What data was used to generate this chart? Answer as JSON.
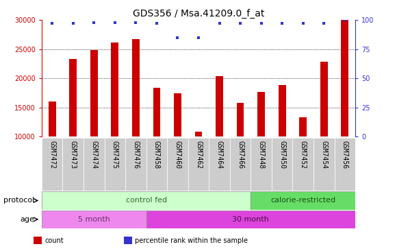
{
  "title": "GDS356 / Msa.41209.0_f_at",
  "samples": [
    "GSM7472",
    "GSM7473",
    "GSM7474",
    "GSM7475",
    "GSM7476",
    "GSM7458",
    "GSM7460",
    "GSM7462",
    "GSM7464",
    "GSM7466",
    "GSM7448",
    "GSM7450",
    "GSM7452",
    "GSM7454",
    "GSM7456"
  ],
  "counts": [
    16000,
    23300,
    24900,
    26200,
    26700,
    18400,
    17500,
    10900,
    20400,
    15800,
    17700,
    18900,
    13400,
    22900,
    30000
  ],
  "percentiles": [
    97,
    97,
    98,
    98,
    98,
    97,
    85,
    85,
    97,
    97,
    97,
    97,
    97,
    97,
    100
  ],
  "bar_color": "#cc0000",
  "dot_color": "#3333cc",
  "ymin": 10000,
  "ymax": 30000,
  "yticks": [
    10000,
    15000,
    20000,
    25000,
    30000
  ],
  "y2min": 0,
  "y2max": 100,
  "y2ticks": [
    0,
    25,
    50,
    75,
    100
  ],
  "grid_color": "#000000",
  "bg_color": "#ffffff",
  "xticklabel_bg": "#cccccc",
  "protocol_groups": [
    {
      "label": "control fed",
      "start": 0,
      "end": 10,
      "color": "#ccffcc",
      "text_color": "#336633"
    },
    {
      "label": "calorie-restricted",
      "start": 10,
      "end": 15,
      "color": "#66dd66",
      "text_color": "#1a4d1a"
    }
  ],
  "age_groups": [
    {
      "label": "5 month",
      "start": 0,
      "end": 5,
      "color": "#ee88ee",
      "text_color": "#663366"
    },
    {
      "label": "30 month",
      "start": 5,
      "end": 15,
      "color": "#dd44dd",
      "text_color": "#441144"
    }
  ],
  "legend_items": [
    {
      "label": "count",
      "color": "#cc0000"
    },
    {
      "label": "percentile rank within the sample",
      "color": "#3333cc"
    }
  ],
  "tick_color_left": "#cc0000",
  "tick_color_right": "#3333cc",
  "title_fontsize": 10,
  "tick_fontsize": 7,
  "label_fontsize": 8,
  "bar_width": 0.35
}
